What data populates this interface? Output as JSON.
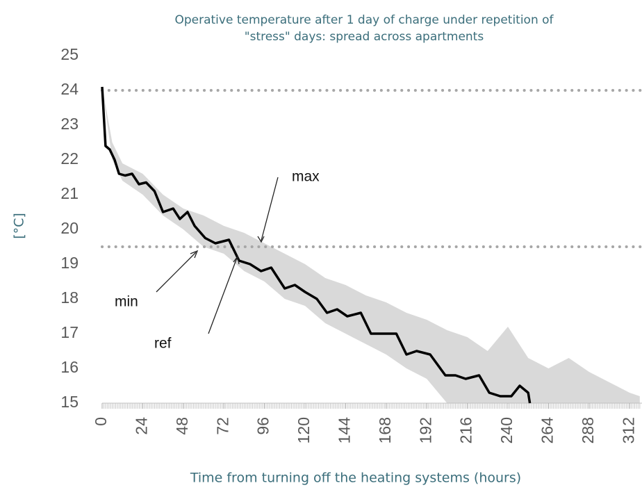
{
  "chart_data": {
    "type": "line",
    "title": [
      "Operative temperature after 1 day of charge under repetition of",
      "\"stress\" days: spread across apartments"
    ],
    "xlabel": "Time from turning off the heating systems (hours)",
    "ylabel": "[°C]",
    "xlim": [
      0,
      318
    ],
    "ylim": [
      15,
      25
    ],
    "xticks": [
      0,
      24,
      48,
      72,
      96,
      120,
      144,
      168,
      192,
      216,
      240,
      264,
      288,
      312
    ],
    "yticks": [
      15,
      16,
      17,
      18,
      19,
      20,
      21,
      22,
      23,
      24,
      25
    ],
    "minor_xtick_step": 1,
    "hlines": [
      24,
      19.5
    ],
    "hline_color": "#a6a6a6",
    "annotations": [
      "max",
      "min",
      "ref"
    ],
    "band": {
      "color": "#d9d9d9",
      "x": [
        0,
        6,
        12,
        24,
        36,
        48,
        60,
        72,
        84,
        96,
        108,
        120,
        132,
        144,
        156,
        168,
        180,
        192,
        204,
        216,
        228,
        240,
        252,
        264,
        276,
        288,
        300,
        312,
        318
      ],
      "upper": [
        24.1,
        22.5,
        21.9,
        21.6,
        21.0,
        20.6,
        20.4,
        20.1,
        19.9,
        19.6,
        19.3,
        19.0,
        18.6,
        18.4,
        18.1,
        17.9,
        17.6,
        17.4,
        17.1,
        16.9,
        16.5,
        17.2,
        16.3,
        16.0,
        16.3,
        15.9,
        15.6,
        15.3,
        15.2
      ],
      "lower": [
        24.1,
        22.0,
        21.4,
        21.0,
        20.4,
        20.0,
        19.5,
        19.3,
        18.8,
        18.5,
        18.0,
        17.8,
        17.3,
        17.0,
        16.7,
        16.4,
        16.0,
        15.7,
        15.0,
        15.0,
        15.0,
        15.0,
        15.0,
        15.0,
        15.0,
        15.0,
        15.0,
        15.0,
        15.0
      ]
    },
    "series": [
      {
        "name": "ref",
        "color": "#000000",
        "x": [
          0,
          2,
          4.5,
          7.4,
          10,
          13.6,
          17.7,
          21.8,
          26,
          31,
          36,
          42,
          46,
          50.5,
          54.7,
          61,
          67,
          75,
          81,
          87.5,
          94,
          100,
          108,
          114,
          120,
          127,
          133,
          139,
          145,
          153,
          159,
          168,
          174,
          180,
          186,
          194,
          203,
          209,
          215,
          223,
          229,
          235.5,
          242,
          247,
          252,
          253
        ],
        "values": [
          24.1,
          22.4,
          22.3,
          22.0,
          21.6,
          21.55,
          21.6,
          21.3,
          21.35,
          21.1,
          20.5,
          20.6,
          20.3,
          20.5,
          20.1,
          19.75,
          19.6,
          19.7,
          19.1,
          19.0,
          18.8,
          18.9,
          18.3,
          18.4,
          18.2,
          18.0,
          17.6,
          17.7,
          17.5,
          17.6,
          17.0,
          17.0,
          17.0,
          16.4,
          16.5,
          16.4,
          15.8,
          15.8,
          15.7,
          15.8,
          15.3,
          15.2,
          15.2,
          15.5,
          15.3,
          15.0
        ]
      }
    ]
  }
}
